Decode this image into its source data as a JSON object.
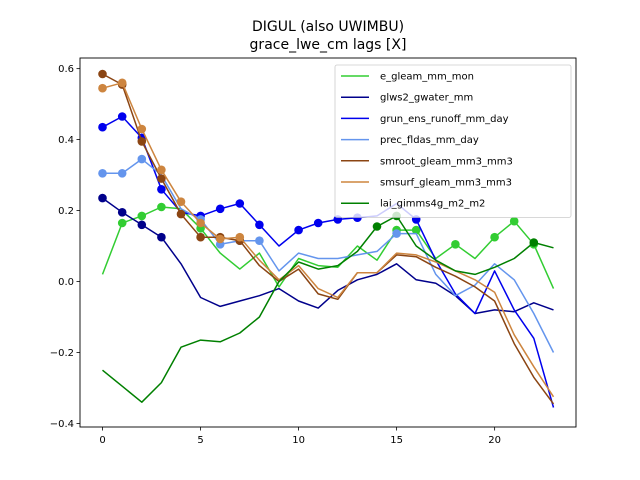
{
  "chart_data": {
    "type": "line",
    "title": "DIGUL (also UWIMBU)",
    "subtitle": "grace_lwe_cm lags [X]",
    "xlabel": "",
    "ylabel": "",
    "xlim": [
      -1.15,
      24.15
    ],
    "ylim": [
      -0.41,
      0.63
    ],
    "xticks": [
      0,
      5,
      10,
      15,
      20
    ],
    "yticks": [
      -0.4,
      -0.2,
      0.0,
      0.2,
      0.4,
      0.6
    ],
    "ytick_labels": [
      "−0.4",
      "−0.2",
      "0.0",
      "0.2",
      "0.4",
      "0.6"
    ],
    "grid": false,
    "legend_position": "top-right",
    "x": [
      0,
      1,
      2,
      3,
      4,
      5,
      6,
      7,
      8,
      9,
      10,
      11,
      12,
      13,
      14,
      15,
      16,
      17,
      18,
      19,
      20,
      21,
      22,
      23
    ],
    "series": [
      {
        "name": "e_gleam_mm_mon",
        "color": "#32cd32",
        "values": [
          0.02,
          0.165,
          0.185,
          0.21,
          0.205,
          0.15,
          0.08,
          0.035,
          0.08,
          -0.015,
          0.065,
          0.045,
          0.04,
          0.1,
          0.06,
          0.145,
          0.145,
          0.065,
          0.105,
          0.065,
          0.125,
          0.17,
          0.105,
          -0.02
        ],
        "markers": [
          1,
          2,
          3,
          5,
          15,
          16,
          18,
          20,
          21,
          22
        ]
      },
      {
        "name": "glws2_gwater_mm",
        "color": "#00008b",
        "values": [
          0.235,
          0.195,
          0.16,
          0.125,
          0.05,
          -0.045,
          -0.07,
          -0.055,
          -0.04,
          -0.02,
          -0.055,
          -0.075,
          -0.025,
          0.005,
          0.02,
          0.05,
          0.005,
          -0.005,
          -0.04,
          -0.09,
          -0.08,
          -0.085,
          -0.06,
          -0.08
        ],
        "markers": [
          0,
          1,
          2,
          3
        ]
      },
      {
        "name": "grun_ens_runoff_mm_day",
        "color": "#0000ee",
        "values": [
          0.435,
          0.465,
          0.405,
          0.26,
          0.195,
          0.185,
          0.205,
          0.22,
          0.16,
          0.1,
          0.145,
          0.165,
          0.175,
          0.18,
          0.185,
          0.22,
          0.175,
          0.06,
          -0.035,
          -0.09,
          0.03,
          -0.08,
          -0.16,
          -0.355
        ],
        "markers": [
          0,
          1,
          2,
          3,
          5,
          6,
          7,
          8,
          10,
          11,
          12,
          13,
          16
        ]
      },
      {
        "name": "prec_fldas_mm_day",
        "color": "#6495ed",
        "values": [
          0.305,
          0.305,
          0.345,
          0.3,
          0.205,
          0.175,
          0.105,
          0.115,
          0.115,
          0.03,
          0.08,
          0.065,
          0.065,
          0.075,
          0.085,
          0.135,
          0.135,
          0.02,
          -0.04,
          -0.01,
          0.05,
          0.005,
          -0.09,
          -0.2
        ],
        "markers": [
          0,
          1,
          2,
          5,
          6,
          7,
          8,
          15
        ]
      },
      {
        "name": "smroot_gleam_mm3_mm3",
        "color": "#8b4513",
        "values": [
          0.585,
          0.555,
          0.395,
          0.29,
          0.19,
          0.125,
          0.125,
          0.115,
          0.045,
          0.0,
          0.035,
          -0.035,
          -0.05,
          0.025,
          0.025,
          0.075,
          0.07,
          0.04,
          0.015,
          -0.015,
          -0.055,
          -0.175,
          -0.27,
          -0.345
        ],
        "markers": [
          0,
          1,
          2,
          3,
          4,
          5,
          6,
          7
        ]
      },
      {
        "name": "smsurf_gleam_mm3_mm3",
        "color": "#cd853f",
        "values": [
          0.545,
          0.56,
          0.43,
          0.315,
          0.225,
          0.165,
          0.12,
          0.125,
          0.06,
          0.005,
          0.045,
          -0.02,
          -0.045,
          0.025,
          0.025,
          0.08,
          0.075,
          0.055,
          0.03,
          0.005,
          -0.03,
          -0.15,
          -0.24,
          -0.325
        ],
        "markers": [
          0,
          1,
          2,
          3,
          4,
          5,
          6,
          7
        ]
      },
      {
        "name": "lai_gimms4g_m2_m2",
        "color": "#008000",
        "values": [
          -0.25,
          -0.295,
          -0.34,
          -0.285,
          -0.185,
          -0.165,
          -0.17,
          -0.145,
          -0.1,
          0.0,
          0.055,
          0.035,
          0.045,
          0.085,
          0.155,
          0.185,
          0.1,
          0.06,
          0.03,
          0.02,
          0.04,
          0.065,
          0.11,
          0.095
        ],
        "markers": [
          14,
          15,
          22
        ]
      }
    ]
  }
}
